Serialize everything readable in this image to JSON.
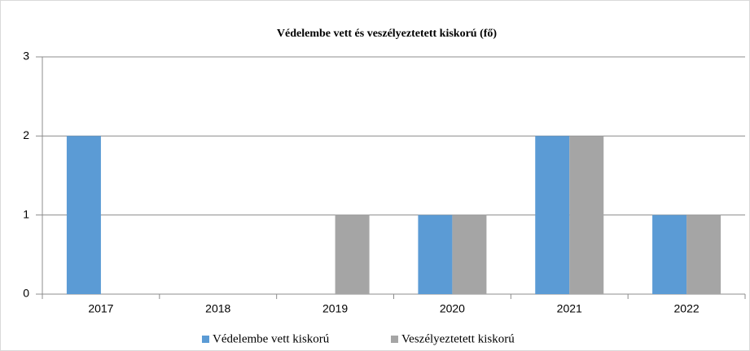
{
  "chart_data": {
    "type": "bar",
    "title": "Védelembe vett és veszélyeztetett kiskorú (fő)",
    "categories": [
      "2017",
      "2018",
      "2019",
      "2020",
      "2021",
      "2022"
    ],
    "series": [
      {
        "name": "Védelembe vett kiskorú",
        "color": "#5b9bd5",
        "values": [
          2,
          0,
          0,
          1,
          2,
          1
        ]
      },
      {
        "name": "Veszélyeztetett kiskorú",
        "color": "#a5a5a5",
        "values": [
          0,
          0,
          1,
          1,
          2,
          1
        ]
      }
    ],
    "ylim": [
      0,
      3
    ],
    "yticks": [
      0,
      1,
      2,
      3
    ],
    "grid": true,
    "legend": "bottom"
  }
}
